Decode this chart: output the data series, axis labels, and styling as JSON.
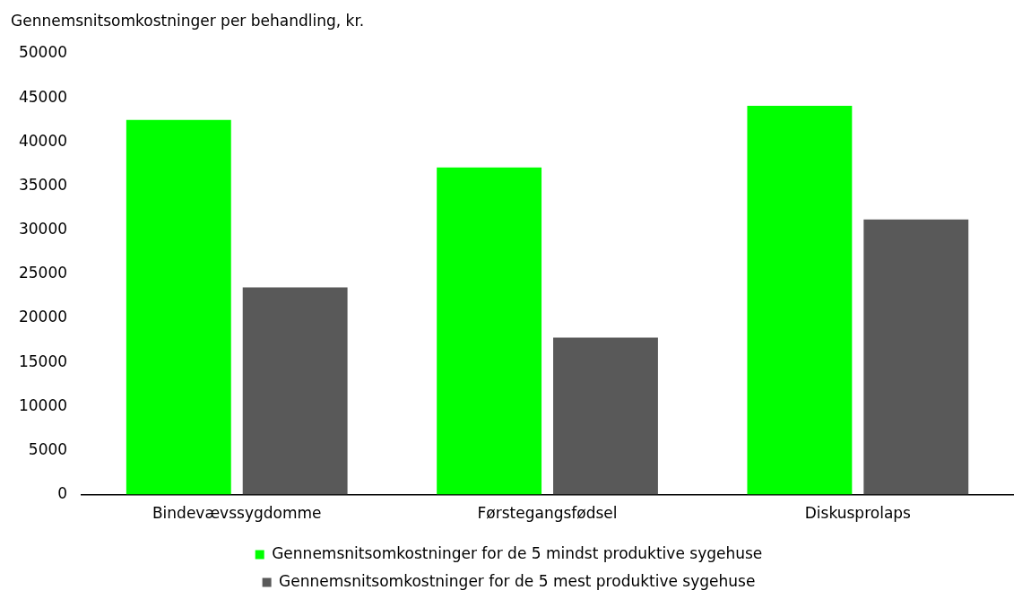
{
  "chart_data": {
    "type": "bar",
    "ylabel": "Gennemsnitsomkostninger per behandling, kr.",
    "categories": [
      "Bindevævssygdomme",
      "Førstegangsfødsel",
      "Diskusprolaps"
    ],
    "series": [
      {
        "name": "Gennemsnitsomkostninger for de 5 mindst produktive sygehuse",
        "color": "#00ff00",
        "values": [
          42500,
          37100,
          44100
        ]
      },
      {
        "name": "Gennemsnitsomkostninger for de 5 mest produktive sygehuse",
        "color": "#595959",
        "values": [
          23500,
          17800,
          31200
        ]
      }
    ],
    "ylim": [
      0,
      50000
    ],
    "yticks": [
      0,
      5000,
      10000,
      15000,
      20000,
      25000,
      30000,
      35000,
      40000,
      45000,
      50000
    ],
    "grid": false,
    "legend": "bottom"
  }
}
